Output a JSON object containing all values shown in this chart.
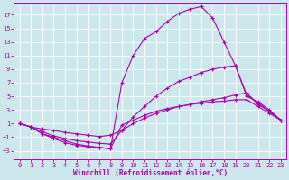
{
  "background_color": "#cce8ec",
  "grid_color": "#b0d8dc",
  "line_color": "#aa00aa",
  "xlabel": "Windchill (Refroidissement éolien,°C)",
  "xlabel_fontsize": 5.5,
  "ytick_vals": [
    -3,
    -1,
    1,
    3,
    5,
    7,
    9,
    11,
    13,
    15,
    17
  ],
  "xtick_vals": [
    0,
    1,
    2,
    3,
    4,
    5,
    6,
    7,
    8,
    9,
    10,
    11,
    12,
    13,
    14,
    15,
    16,
    17,
    18,
    19,
    20,
    21,
    22,
    23
  ],
  "xlim": [
    -0.5,
    23.5
  ],
  "ylim": [
    -4.2,
    18.8
  ],
  "tick_fontsize": 5.0,
  "line1_x": [
    0,
    1,
    2,
    3,
    4,
    5,
    6,
    7,
    8,
    9,
    10,
    11,
    12,
    13,
    14,
    15,
    16,
    17,
    18,
    19,
    20,
    21,
    22,
    23
  ],
  "line1_y": [
    1.0,
    0.5,
    -0.5,
    -1.2,
    -1.8,
    -2.2,
    -2.4,
    -2.5,
    -2.7,
    7.0,
    11.0,
    13.5,
    14.5,
    16.0,
    17.2,
    17.8,
    18.2,
    16.5,
    13.0,
    9.5,
    5.0,
    4.2,
    3.0,
    1.5
  ],
  "line2_x": [
    0,
    1,
    2,
    3,
    4,
    5,
    6,
    7,
    8,
    9,
    10,
    11,
    12,
    13,
    14,
    15,
    16,
    17,
    18,
    19,
    20,
    21,
    22,
    23
  ],
  "line2_y": [
    1.0,
    0.5,
    -0.2,
    -0.8,
    -1.2,
    -1.5,
    -1.7,
    -1.9,
    -2.0,
    0.0,
    2.0,
    3.5,
    5.0,
    6.2,
    7.2,
    7.8,
    8.5,
    9.0,
    9.3,
    9.5,
    5.2,
    4.0,
    2.8,
    1.5
  ],
  "line3_x": [
    0,
    1,
    2,
    3,
    4,
    5,
    6,
    7,
    8,
    9,
    10,
    11,
    12,
    13,
    14,
    15,
    16,
    17,
    18,
    19,
    20,
    21,
    22,
    23
  ],
  "line3_y": [
    1.0,
    0.5,
    0.2,
    0.0,
    -0.3,
    -0.5,
    -0.7,
    -0.9,
    -0.7,
    0.0,
    1.0,
    1.8,
    2.5,
    3.0,
    3.5,
    3.8,
    4.2,
    4.5,
    4.8,
    5.2,
    5.5,
    3.8,
    2.8,
    1.5
  ],
  "line4_x": [
    0,
    1,
    2,
    3,
    4,
    5,
    6,
    7,
    8,
    9,
    10,
    11,
    12,
    13,
    14,
    15,
    16,
    17,
    18,
    19,
    20,
    21,
    22,
    23
  ],
  "line4_y": [
    1.0,
    0.5,
    -0.5,
    -1.0,
    -1.5,
    -2.0,
    -2.3,
    -2.5,
    -2.7,
    0.8,
    1.5,
    2.2,
    2.8,
    3.2,
    3.5,
    3.8,
    4.0,
    4.2,
    4.3,
    4.5,
    4.5,
    3.5,
    2.5,
    1.5
  ]
}
